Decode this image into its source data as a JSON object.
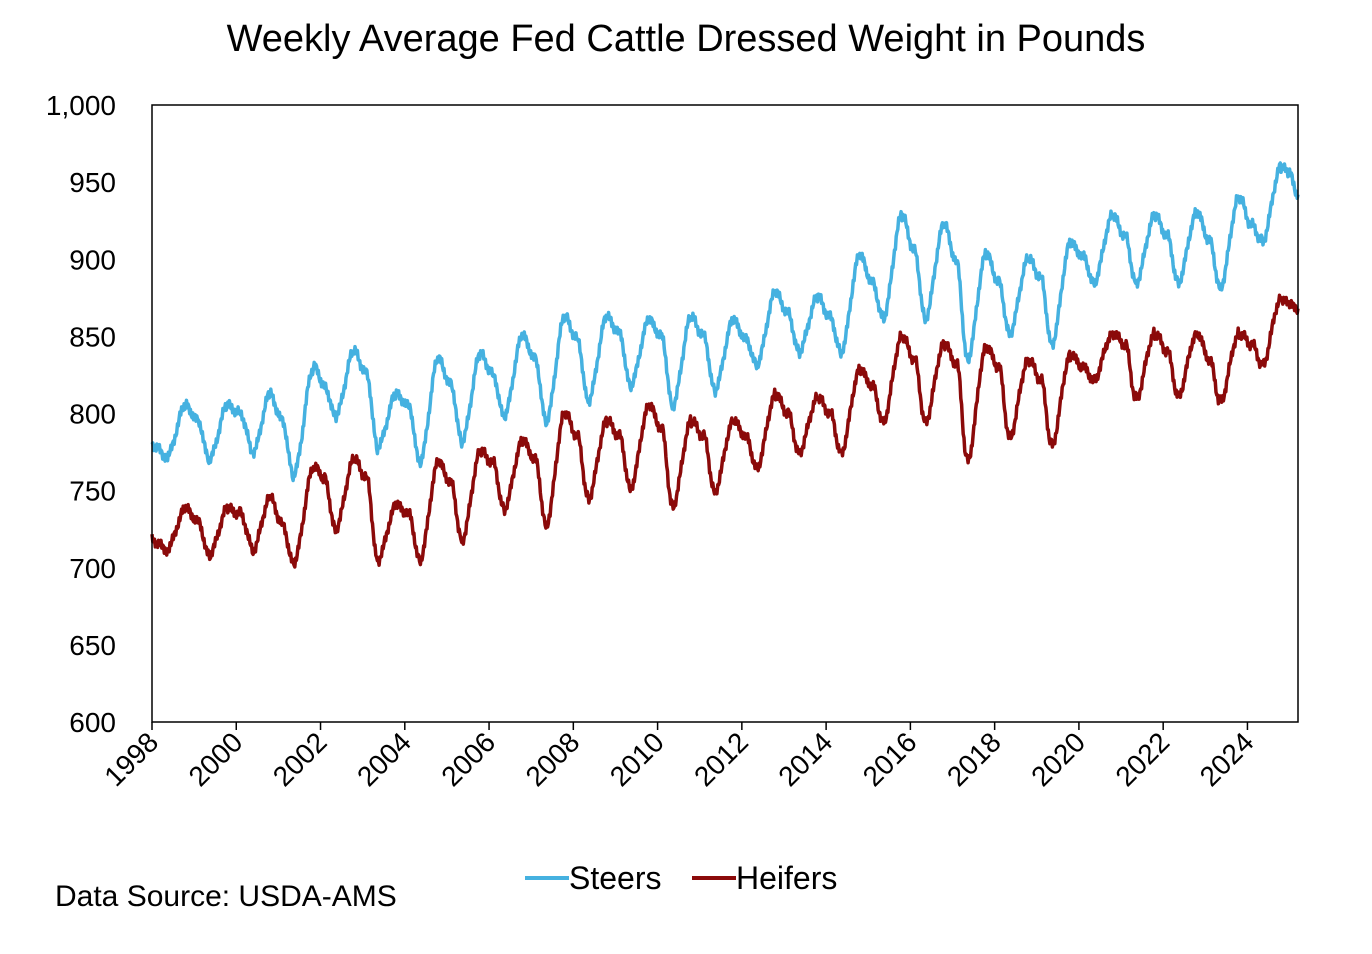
{
  "chart_data": {
    "type": "line",
    "title": "Weekly Average Fed Cattle Dressed Weight in Pounds",
    "xlabel": "",
    "ylabel": "",
    "xlim": [
      1998,
      2025.2
    ],
    "ylim": [
      600,
      1000
    ],
    "yticks": [
      600,
      650,
      700,
      750,
      800,
      850,
      900,
      950,
      1000
    ],
    "ytick_labels": [
      "600",
      "650",
      "700",
      "750",
      "800",
      "850",
      "900",
      "950",
      "1,000"
    ],
    "xticks": [
      1998,
      2000,
      2002,
      2004,
      2006,
      2008,
      2010,
      2012,
      2014,
      2016,
      2018,
      2020,
      2022,
      2024
    ],
    "xtick_labels": [
      "1998",
      "2000",
      "2002",
      "2004",
      "2006",
      "2008",
      "2010",
      "2012",
      "2014",
      "2016",
      "2018",
      "2020",
      "2022",
      "2024"
    ],
    "grid": false,
    "legend_position": "bottom",
    "series": [
      {
        "name": "Steers",
        "color": "#45b1e0",
        "x": [
          1998.0,
          1998.35,
          1998.8,
          1999.1,
          1999.35,
          1999.8,
          2000.1,
          2000.4,
          2000.8,
          2001.1,
          2001.35,
          2001.85,
          2002.1,
          2002.35,
          2002.8,
          2003.1,
          2003.35,
          2003.8,
          2004.1,
          2004.35,
          2004.8,
          2005.1,
          2005.35,
          2005.8,
          2006.1,
          2006.35,
          2006.8,
          2007.1,
          2007.35,
          2007.8,
          2008.1,
          2008.35,
          2008.8,
          2009.1,
          2009.35,
          2009.8,
          2010.1,
          2010.35,
          2010.8,
          2011.1,
          2011.35,
          2011.8,
          2012.1,
          2012.35,
          2012.8,
          2013.1,
          2013.35,
          2013.8,
          2014.1,
          2014.35,
          2014.8,
          2015.1,
          2015.35,
          2015.8,
          2016.1,
          2016.35,
          2016.8,
          2017.1,
          2017.35,
          2017.8,
          2018.1,
          2018.35,
          2018.8,
          2019.1,
          2019.35,
          2019.8,
          2020.1,
          2020.35,
          2020.8,
          2021.1,
          2021.35,
          2021.8,
          2022.1,
          2022.35,
          2022.8,
          2023.1,
          2023.35,
          2023.8,
          2024.1,
          2024.35,
          2024.8,
          2025.0,
          2025.2
        ],
        "values": [
          780,
          772,
          805,
          795,
          770,
          805,
          800,
          775,
          812,
          795,
          760,
          830,
          818,
          798,
          840,
          825,
          778,
          812,
          805,
          768,
          835,
          818,
          782,
          838,
          825,
          798,
          850,
          835,
          795,
          862,
          848,
          808,
          862,
          852,
          818,
          860,
          850,
          805,
          862,
          850,
          815,
          860,
          848,
          832,
          878,
          865,
          840,
          875,
          862,
          840,
          902,
          885,
          862,
          928,
          905,
          862,
          922,
          898,
          835,
          903,
          885,
          852,
          900,
          888,
          845,
          910,
          902,
          885,
          928,
          915,
          885,
          928,
          915,
          885,
          930,
          912,
          882,
          940,
          922,
          912,
          960,
          955,
          942
        ]
      },
      {
        "name": "Heifers",
        "color": "#8b0a0a",
        "x": [
          1998.0,
          1998.35,
          1998.8,
          1999.1,
          1999.35,
          1999.8,
          2000.1,
          2000.4,
          2000.8,
          2001.1,
          2001.35,
          2001.85,
          2002.1,
          2002.35,
          2002.8,
          2003.1,
          2003.35,
          2003.8,
          2004.1,
          2004.35,
          2004.8,
          2005.1,
          2005.35,
          2005.8,
          2006.1,
          2006.35,
          2006.8,
          2007.1,
          2007.35,
          2007.8,
          2008.1,
          2008.35,
          2008.8,
          2009.1,
          2009.35,
          2009.8,
          2010.1,
          2010.35,
          2010.8,
          2011.1,
          2011.35,
          2011.8,
          2012.1,
          2012.35,
          2012.8,
          2013.1,
          2013.35,
          2013.8,
          2014.1,
          2014.35,
          2014.8,
          2015.1,
          2015.35,
          2015.8,
          2016.1,
          2016.35,
          2016.8,
          2017.1,
          2017.35,
          2017.8,
          2018.1,
          2018.35,
          2018.8,
          2019.1,
          2019.35,
          2019.8,
          2020.1,
          2020.35,
          2020.8,
          2021.1,
          2021.35,
          2021.8,
          2022.1,
          2022.35,
          2022.8,
          2023.1,
          2023.35,
          2023.8,
          2024.1,
          2024.35,
          2024.8,
          2025.0,
          2025.2
        ],
        "values": [
          718,
          712,
          738,
          730,
          708,
          738,
          735,
          712,
          745,
          728,
          703,
          765,
          758,
          725,
          770,
          758,
          705,
          740,
          735,
          705,
          768,
          755,
          718,
          775,
          768,
          738,
          782,
          770,
          728,
          800,
          785,
          745,
          795,
          785,
          752,
          805,
          790,
          740,
          795,
          785,
          750,
          795,
          785,
          765,
          812,
          800,
          775,
          810,
          800,
          775,
          828,
          818,
          795,
          850,
          835,
          795,
          845,
          832,
          770,
          843,
          830,
          785,
          835,
          822,
          780,
          838,
          830,
          822,
          852,
          845,
          810,
          852,
          840,
          812,
          852,
          835,
          808,
          852,
          845,
          832,
          875,
          870,
          868
        ]
      }
    ],
    "source_note": "Data Source: USDA-AMS"
  }
}
